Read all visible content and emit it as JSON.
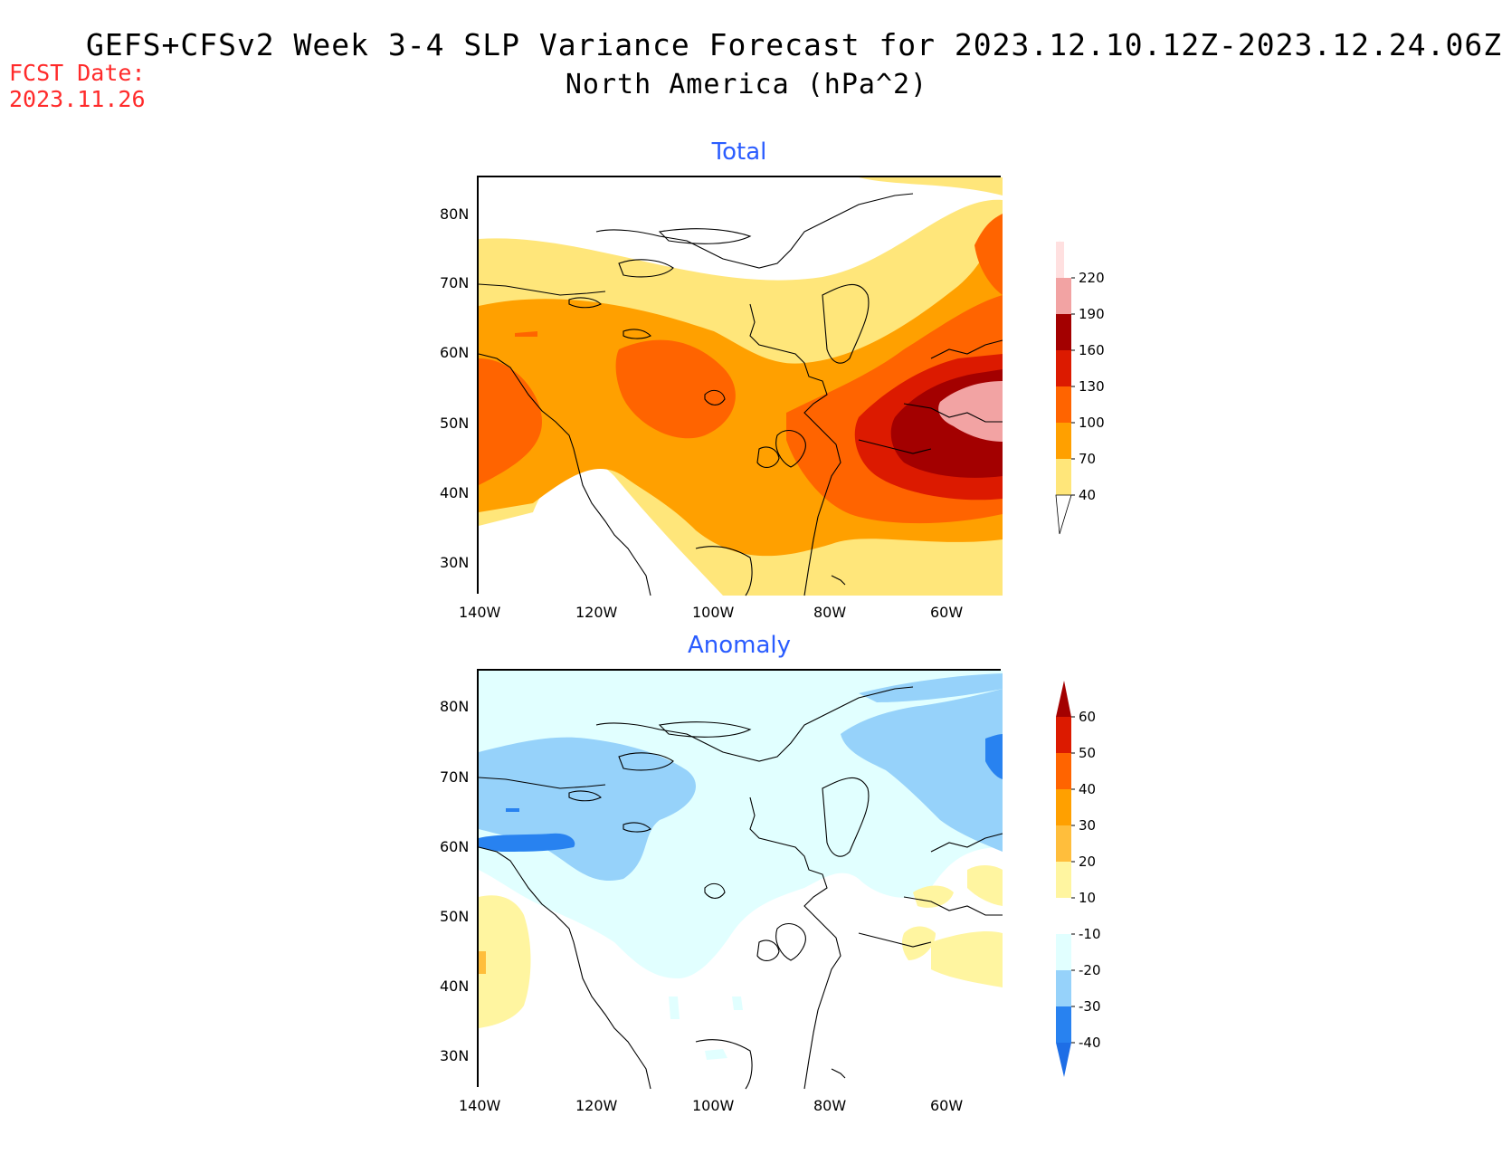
{
  "header": {
    "title_line1": "GEFS+CFSv2 Week 3-4 SLP Variance Forecast for 2023.12.10.12Z-2023.12.24.06Z",
    "title_line2": "North America (hPa^2)",
    "fcst_label": "FCST Date:",
    "fcst_date": "2023.11.26"
  },
  "axes": {
    "lat_labels": [
      "80N",
      "70N",
      "60N",
      "50N",
      "40N",
      "30N"
    ],
    "lon_labels": [
      "140W",
      "120W",
      "100W",
      "80W",
      "60W"
    ]
  },
  "panels": [
    {
      "title": "Total",
      "legend": {
        "levels": [
          "220",
          "190",
          "160",
          "130",
          "100",
          "70",
          "40"
        ],
        "colors": [
          "#ffe0e0",
          "#f2a3a3",
          "#a30000",
          "#dc1a00",
          "#ff6400",
          "#ffa000",
          "#ffe67a"
        ]
      }
    },
    {
      "title": "Anomaly",
      "legend": {
        "levels": [
          "60",
          "50",
          "40",
          "30",
          "20",
          "10",
          "-10",
          "-20",
          "-30",
          "-40"
        ],
        "colors": [
          "#a30000",
          "#dc1a00",
          "#ff6400",
          "#ffa000",
          "#ffbe3c",
          "#fff5a0",
          "#ffffff",
          "#e1ffff",
          "#96d2fa",
          "#2882f0",
          "#1e6ee6"
        ]
      }
    }
  ]
}
